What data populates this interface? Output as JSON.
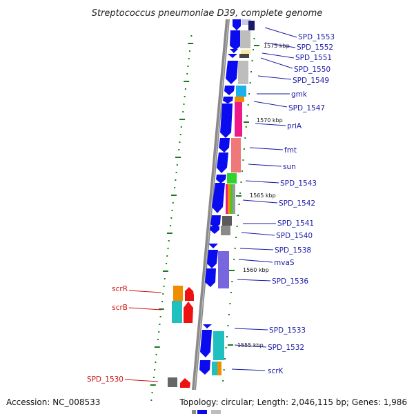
{
  "title": "Streptococcus pneumoniae D39, complete genome",
  "footer": {
    "accession": "Accession: NC_008533",
    "summary": "Topology: circular; Length: 2,046,115 bp; Genes: 1,986"
  },
  "colors": {
    "forward_label": "#1a1aa8",
    "reverse_label": "#cc1111",
    "forward_arrow": "#0b0bf0",
    "reverse_arrow": "#ee1111",
    "axis": "#8a8a8a",
    "tick": "#1a7a1a"
  },
  "scale_marks": [
    "1575 kbp",
    "1570 kbp",
    "1565 kbp",
    "1560 kbp",
    "1555 kbp"
  ],
  "forward_labels": [
    "SPD_1553",
    "SPD_1552",
    "SPD_1551",
    "SPD_1550",
    "SPD_1549",
    "gmk",
    "SPD_1547",
    "priA",
    "fmt",
    "sun",
    "SPD_1543",
    "SPD_1542",
    "SPD_1541",
    "SPD_1540",
    "SPD_1538",
    "mvaS",
    "SPD_1536",
    "SPD_1533",
    "SPD_1532",
    "scrK"
  ],
  "reverse_labels": [
    "scrR",
    "scrB",
    "SPD_1530"
  ]
}
